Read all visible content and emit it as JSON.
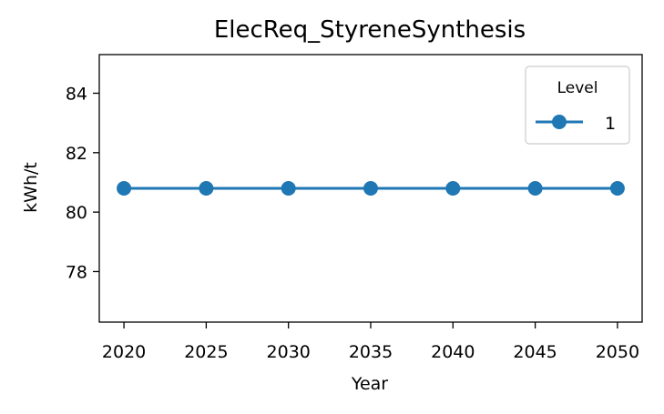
{
  "chart_data": {
    "type": "line",
    "title": "ElecReq_StyreneSynthesis",
    "xlabel": "Year",
    "ylabel": "kWh/t",
    "x": [
      2020,
      2025,
      2030,
      2035,
      2040,
      2045,
      2050
    ],
    "series": [
      {
        "name": "1",
        "values": [
          80.8,
          80.8,
          80.8,
          80.8,
          80.8,
          80.8,
          80.8
        ],
        "color": "#1f77b4",
        "marker": "circle"
      }
    ],
    "xlim": [
      2018.5,
      2051.5
    ],
    "ylim": [
      76.3,
      85.3
    ],
    "xticks": [
      "2020",
      "2025",
      "2030",
      "2035",
      "2040",
      "2045",
      "2050"
    ],
    "yticks": [
      "78",
      "80",
      "82",
      "84"
    ],
    "grid": false,
    "legend": {
      "title": "Level",
      "placement": "upper right"
    }
  }
}
